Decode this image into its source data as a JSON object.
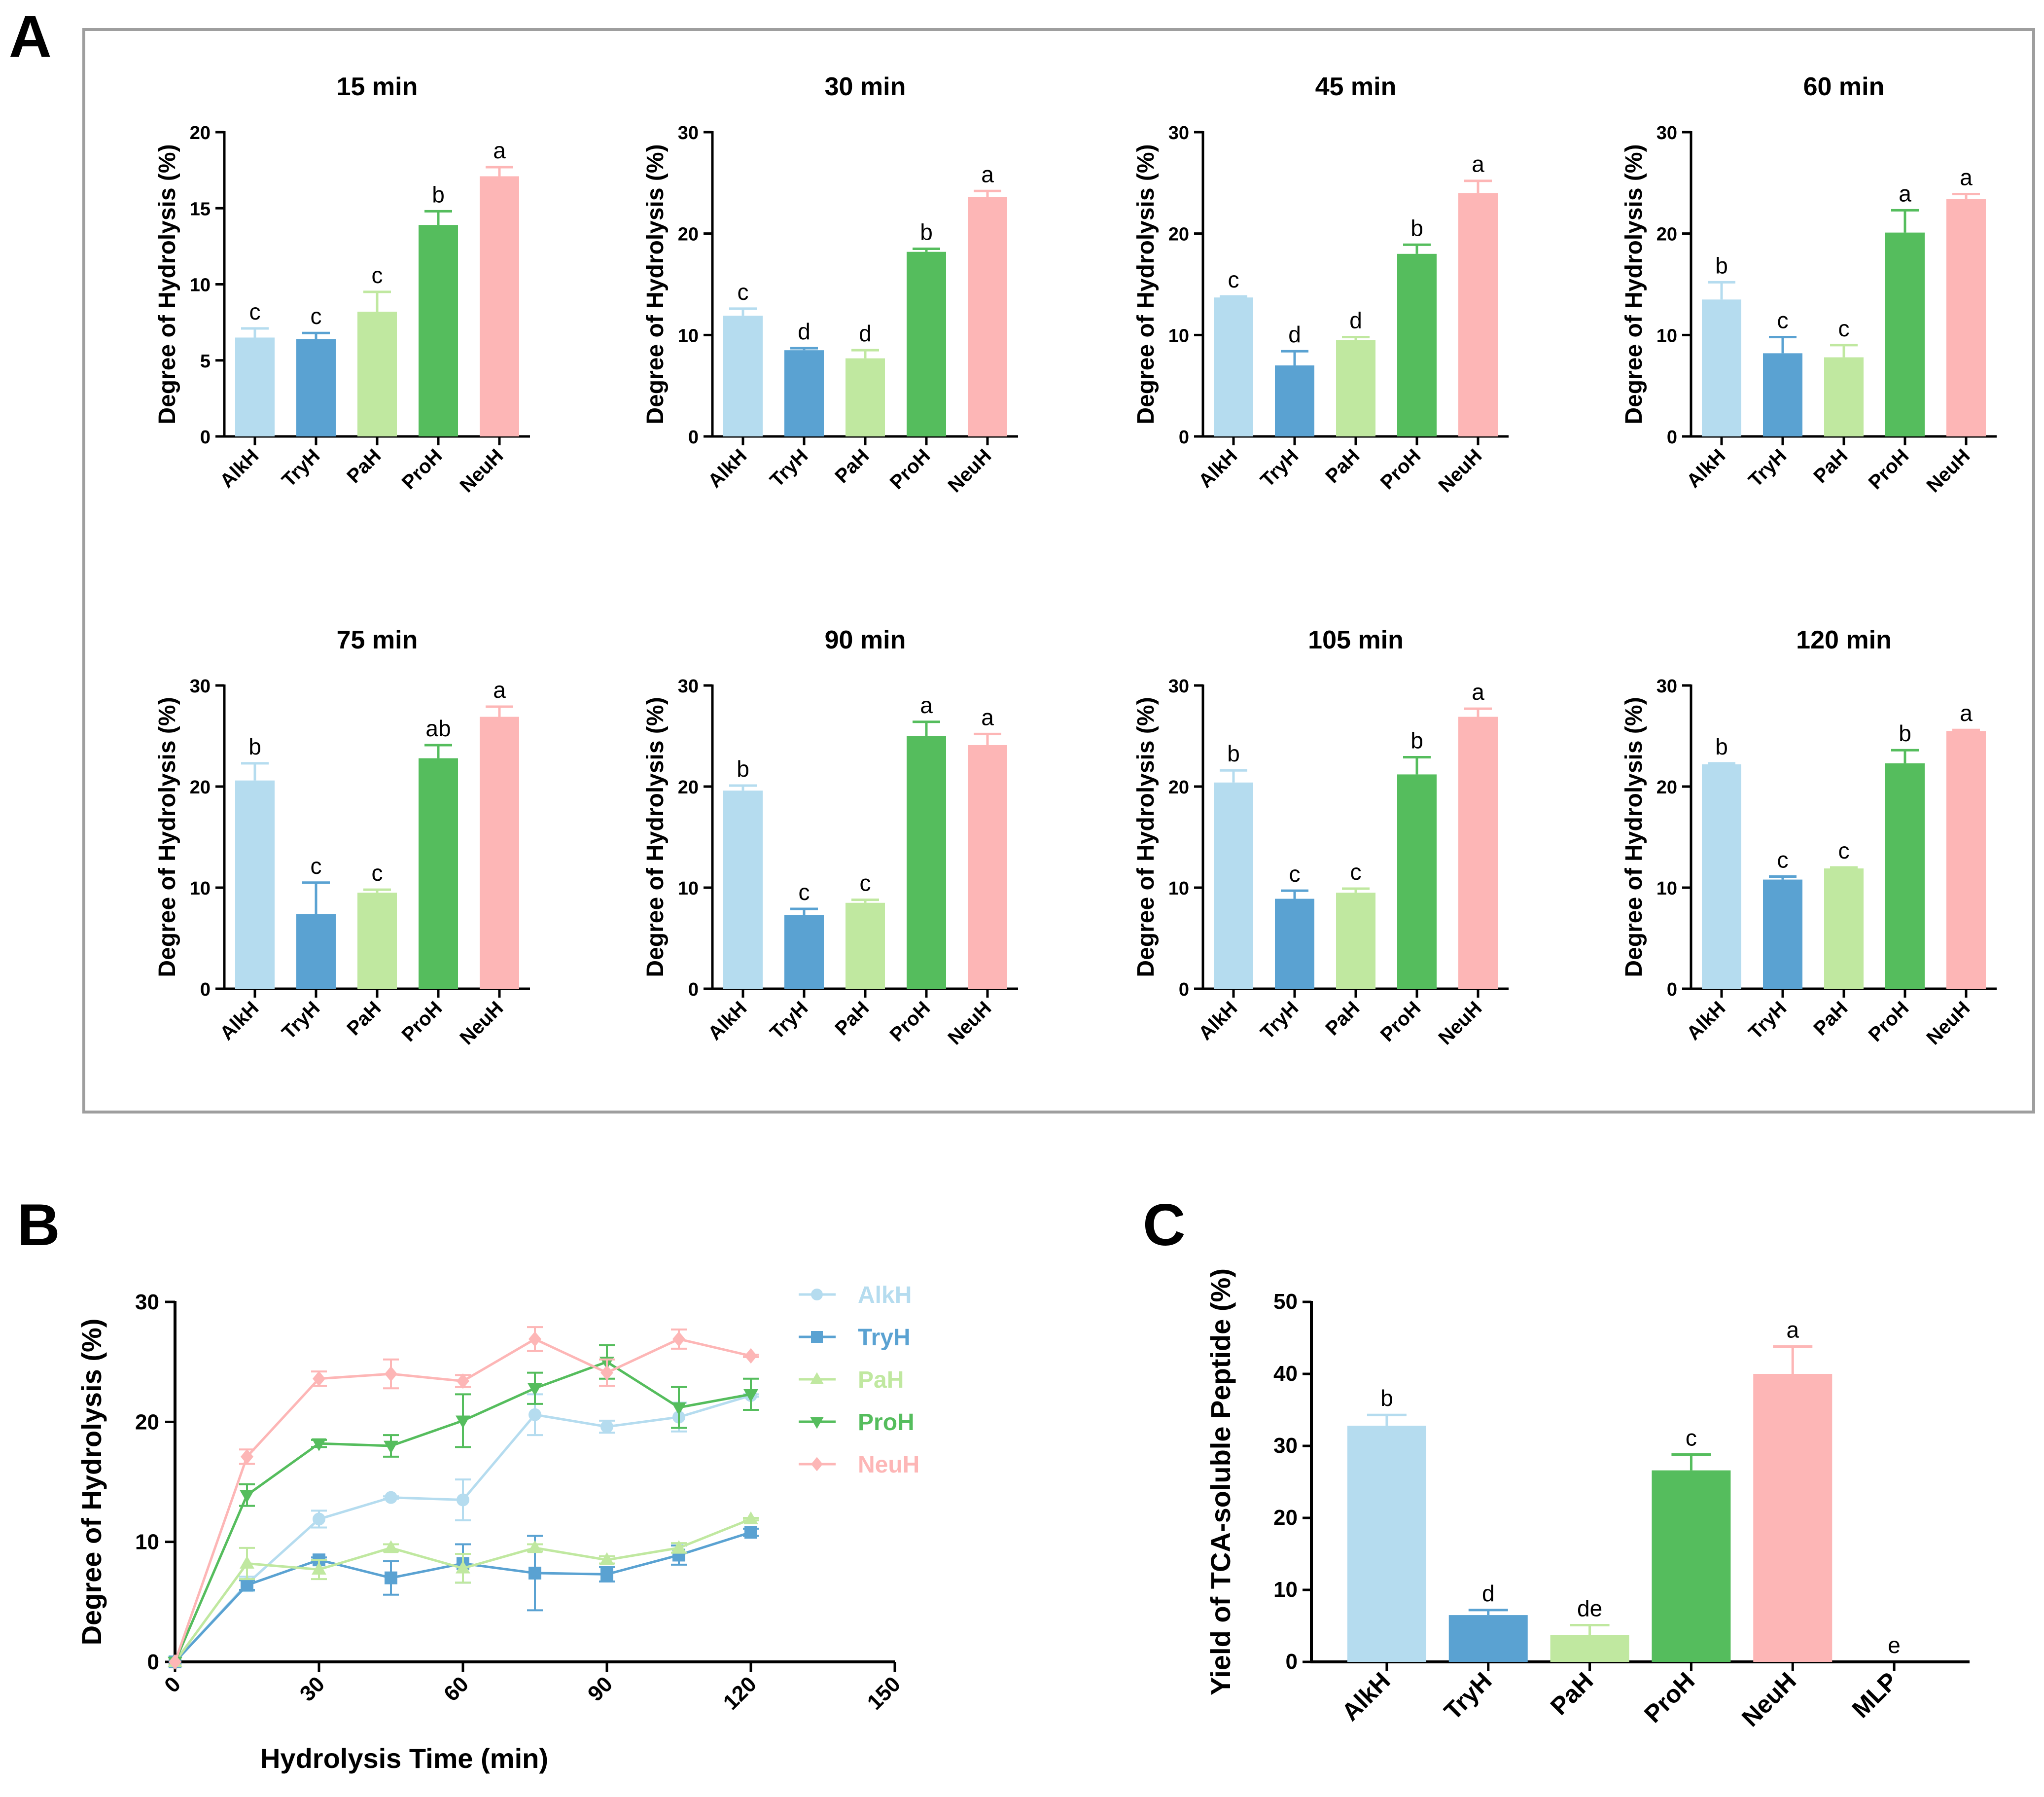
{
  "panels": {
    "A": "A",
    "B": "B",
    "C": "C"
  },
  "colors": {
    "AlkH": "#b5dcef",
    "TryH": "#5aa2d2",
    "PaH": "#c0e8a0",
    "ProH": "#55bd5d",
    "NeuH": "#fdb6b6"
  },
  "chart_data": [
    {
      "type": "bar",
      "title": "15 min",
      "ylabel": "Degree of Hydrolysis (%)",
      "ylim": [
        0,
        20
      ],
      "yticks": [
        0,
        5,
        10,
        15,
        20
      ],
      "categories": [
        "AlkH",
        "TryH",
        "PaH",
        "ProH",
        "NeuH"
      ],
      "values": [
        6.5,
        6.4,
        8.2,
        13.9,
        17.1
      ],
      "errors": [
        0.6,
        0.4,
        1.3,
        0.9,
        0.6
      ],
      "letters": [
        "c",
        "c",
        "c",
        "b",
        "a"
      ]
    },
    {
      "type": "bar",
      "title": "30 min",
      "ylabel": "Degree of Hydrolysis (%)",
      "ylim": [
        0,
        30
      ],
      "yticks": [
        0,
        10,
        20,
        30
      ],
      "categories": [
        "AlkH",
        "TryH",
        "PaH",
        "ProH",
        "NeuH"
      ],
      "values": [
        11.9,
        8.5,
        7.7,
        18.2,
        23.6
      ],
      "errors": [
        0.7,
        0.2,
        0.8,
        0.3,
        0.6
      ],
      "letters": [
        "c",
        "d",
        "d",
        "b",
        "a"
      ]
    },
    {
      "type": "bar",
      "title": "45 min",
      "ylabel": "Degree of Hydrolysis (%)",
      "ylim": [
        0,
        30
      ],
      "yticks": [
        0,
        10,
        20,
        30
      ],
      "categories": [
        "AlkH",
        "TryH",
        "PaH",
        "ProH",
        "NeuH"
      ],
      "values": [
        13.7,
        7.0,
        9.5,
        18.0,
        24.0
      ],
      "errors": [
        0.1,
        1.4,
        0.3,
        0.9,
        1.2
      ],
      "letters": [
        "c",
        "d",
        "d",
        "b",
        "a"
      ]
    },
    {
      "type": "bar",
      "title": "60 min",
      "ylabel": "Degree of Hydrolysis (%)",
      "ylim": [
        0,
        30
      ],
      "yticks": [
        0,
        10,
        20,
        30
      ],
      "categories": [
        "AlkH",
        "TryH",
        "PaH",
        "ProH",
        "NeuH"
      ],
      "values": [
        13.5,
        8.2,
        7.8,
        20.1,
        23.4
      ],
      "errors": [
        1.7,
        1.6,
        1.2,
        2.2,
        0.5
      ],
      "letters": [
        "b",
        "c",
        "c",
        "a",
        "a"
      ]
    },
    {
      "type": "bar",
      "title": "75 min",
      "ylabel": "Degree of Hydrolysis (%)",
      "ylim": [
        0,
        30
      ],
      "yticks": [
        0,
        10,
        20,
        30
      ],
      "categories": [
        "AlkH",
        "TryH",
        "PaH",
        "ProH",
        "NeuH"
      ],
      "values": [
        20.6,
        7.4,
        9.5,
        22.8,
        26.9
      ],
      "errors": [
        1.7,
        3.1,
        0.3,
        1.3,
        1.0
      ],
      "letters": [
        "b",
        "c",
        "c",
        "ab",
        "a"
      ]
    },
    {
      "type": "bar",
      "title": "90 min",
      "ylabel": "Degree of Hydrolysis (%)",
      "ylim": [
        0,
        30
      ],
      "yticks": [
        0,
        10,
        20,
        30
      ],
      "categories": [
        "AlkH",
        "TryH",
        "PaH",
        "ProH",
        "NeuH"
      ],
      "values": [
        19.6,
        7.3,
        8.5,
        25.0,
        24.1
      ],
      "errors": [
        0.5,
        0.6,
        0.3,
        1.4,
        1.1
      ],
      "letters": [
        "b",
        "c",
        "c",
        "a",
        "a"
      ]
    },
    {
      "type": "bar",
      "title": "105 min",
      "ylabel": "Degree of Hydrolysis (%)",
      "ylim": [
        0,
        30
      ],
      "yticks": [
        0,
        10,
        20,
        30
      ],
      "categories": [
        "AlkH",
        "TryH",
        "PaH",
        "ProH",
        "NeuH"
      ],
      "values": [
        20.4,
        8.9,
        9.5,
        21.2,
        26.9
      ],
      "errors": [
        1.2,
        0.8,
        0.4,
        1.7,
        0.8
      ],
      "letters": [
        "b",
        "c",
        "c",
        "b",
        "a"
      ]
    },
    {
      "type": "bar",
      "title": "120 min",
      "ylabel": "Degree of Hydrolysis (%)",
      "ylim": [
        0,
        30
      ],
      "yticks": [
        0,
        10,
        20,
        30
      ],
      "categories": [
        "AlkH",
        "TryH",
        "PaH",
        "ProH",
        "NeuH"
      ],
      "values": [
        22.2,
        10.8,
        11.9,
        22.3,
        25.5
      ],
      "errors": [
        0.1,
        0.3,
        0.1,
        1.3,
        0.1
      ],
      "letters": [
        "b",
        "c",
        "c",
        "b",
        "a"
      ]
    },
    {
      "type": "line",
      "xlabel": "Hydrolysis Time (min)",
      "ylabel": "Degree of Hydrolysis (%)",
      "xlim": [
        0,
        150
      ],
      "ylim": [
        0,
        30
      ],
      "xticks": [
        0,
        30,
        60,
        90,
        120,
        150
      ],
      "yticks": [
        0,
        10,
        20,
        30
      ],
      "x": [
        0,
        15,
        30,
        45,
        60,
        75,
        90,
        105,
        120
      ],
      "series": [
        {
          "name": "AlkH",
          "marker": "circle",
          "values": [
            0,
            6.5,
            11.9,
            13.7,
            13.5,
            20.6,
            19.6,
            20.4,
            22.2
          ],
          "errors": [
            0,
            0.6,
            0.7,
            0.1,
            1.7,
            1.7,
            0.5,
            1.2,
            0.1
          ]
        },
        {
          "name": "TryH",
          "marker": "square",
          "values": [
            0,
            6.4,
            8.5,
            7.0,
            8.2,
            7.4,
            7.3,
            8.9,
            10.8
          ],
          "errors": [
            0,
            0.4,
            0.2,
            1.4,
            1.6,
            3.1,
            0.6,
            0.8,
            0.3
          ]
        },
        {
          "name": "PaH",
          "marker": "triangle-up",
          "values": [
            0,
            8.2,
            7.7,
            9.5,
            7.8,
            9.5,
            8.5,
            9.5,
            11.9
          ],
          "errors": [
            0,
            1.3,
            0.8,
            0.3,
            1.2,
            0.3,
            0.3,
            0.4,
            0.1
          ]
        },
        {
          "name": "ProH",
          "marker": "triangle-down",
          "values": [
            0,
            13.9,
            18.2,
            18.0,
            20.1,
            22.8,
            25.0,
            21.2,
            22.3
          ],
          "errors": [
            0,
            0.9,
            0.3,
            0.9,
            2.2,
            1.3,
            1.4,
            1.7,
            1.3
          ]
        },
        {
          "name": "NeuH",
          "marker": "diamond",
          "values": [
            0,
            17.1,
            23.6,
            24.0,
            23.4,
            26.9,
            24.1,
            26.9,
            25.5
          ],
          "errors": [
            0,
            0.6,
            0.6,
            1.2,
            0.5,
            1.0,
            1.1,
            0.8,
            0.1
          ]
        }
      ],
      "legend_position": "top-right"
    },
    {
      "type": "bar",
      "ylabel": "Yield of TCA-soluble Peptide (%)",
      "ylim": [
        0,
        50
      ],
      "yticks": [
        0,
        10,
        20,
        30,
        40,
        50
      ],
      "categories": [
        "AlkH",
        "TryH",
        "PaH",
        "ProH",
        "NeuH",
        "MLP"
      ],
      "values": [
        32.8,
        6.5,
        3.7,
        26.6,
        40.0,
        0
      ],
      "errors": [
        1.5,
        0.7,
        1.4,
        2.2,
        3.8,
        0
      ],
      "letters": [
        "b",
        "d",
        "de",
        "c",
        "a",
        "e"
      ]
    }
  ]
}
